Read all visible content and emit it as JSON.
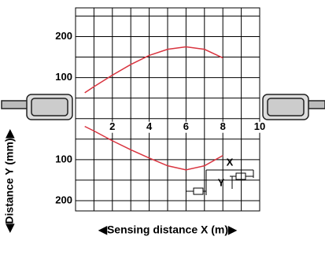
{
  "chart_data": {
    "type": "line",
    "x_label": "◀Sensing distance X (m)▶",
    "y_label": "◀Distance Y (mm)▶",
    "x": [
      0.5,
      1,
      2,
      3,
      4,
      5,
      6,
      7,
      8
    ],
    "series": [
      {
        "color": "#d9343f",
        "values": [
          63,
          78,
          106,
          132,
          154,
          169,
          175,
          169,
          148
        ]
      },
      {
        "color": "#d9343f",
        "values": [
          -19,
          -30,
          -54,
          -76,
          -96,
          -115,
          -125,
          -115,
          -90
        ]
      }
    ],
    "xlim": [
      0,
      10
    ],
    "xticks": [
      2,
      4,
      6,
      8,
      10
    ],
    "ylim": [
      -225,
      270
    ],
    "yticks": [
      {
        "value": -200,
        "label": "200"
      },
      {
        "value": -100,
        "label": "100"
      },
      100,
      200
    ],
    "grid": true,
    "inset": {
      "x_label": "X",
      "y_label": "Y"
    }
  }
}
